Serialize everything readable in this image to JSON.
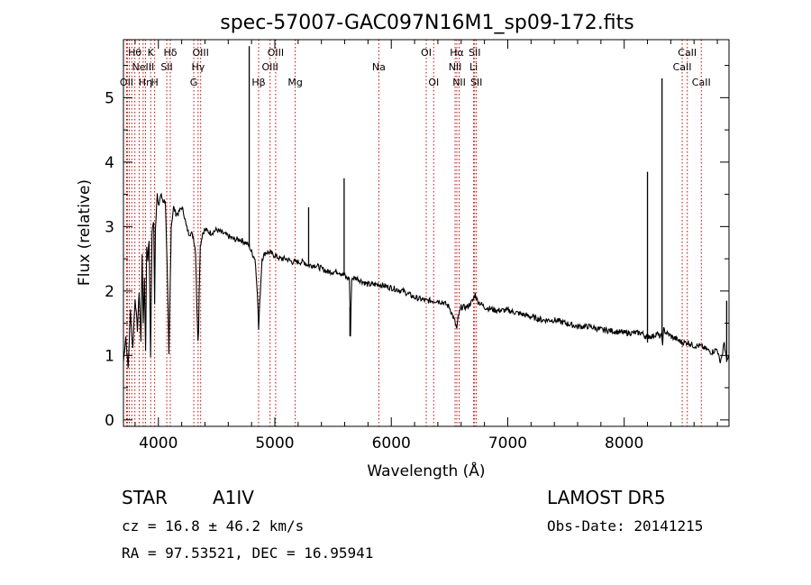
{
  "chart_data": {
    "type": "line",
    "title": "spec-57007-GAC097N16M1_sp09-172.fits",
    "xlabel": "Wavelength (Å)",
    "ylabel": "Flux (relative)",
    "xlim": [
      3700,
      8900
    ],
    "ylim": [
      -0.1,
      5.9
    ],
    "xticks": [
      4000,
      5000,
      6000,
      7000,
      8000
    ],
    "yticks": [
      0,
      1,
      2,
      3,
      4,
      5
    ],
    "grid": false,
    "line_color": "#000000",
    "marker_color": "#cc0000",
    "series": [
      {
        "x": [
          3700,
          3720,
          3740,
          3760,
          3780,
          3800,
          3820,
          3835,
          3850,
          3860,
          3870,
          3880,
          3890,
          3900,
          3910,
          3920,
          3933,
          3945,
          3960,
          3968,
          3975,
          3990,
          4000,
          4020,
          4040,
          4060,
          4080,
          4090,
          4102,
          4110,
          4130,
          4150,
          4170,
          4200,
          4220,
          4240,
          4260,
          4280,
          4300,
          4320,
          4330,
          4340,
          4345,
          4350,
          4360,
          4380,
          4400,
          4450,
          4500,
          4550,
          4600,
          4650,
          4700,
          4750,
          4780,
          4800,
          4830,
          4850,
          4861,
          4870,
          4890,
          4920,
          4950,
          5000,
          5050,
          5100,
          5150,
          5200,
          5250,
          5270,
          5290,
          5300,
          5350,
          5400,
          5450,
          5500,
          5550,
          5590,
          5600,
          5610,
          5620,
          5640,
          5650,
          5660,
          5680,
          5700,
          5800,
          5900,
          6000,
          6100,
          6200,
          6300,
          6400,
          6450,
          6500,
          6530,
          6550,
          6563,
          6575,
          6600,
          6650,
          6700,
          6720,
          6740,
          6800,
          6900,
          7000,
          7100,
          7200,
          7300,
          7400,
          7500,
          7600,
          7700,
          7800,
          7900,
          8000,
          8100,
          8150,
          8180,
          8195,
          8200,
          8205,
          8220,
          8250,
          8280,
          8300,
          8320,
          8330,
          8340,
          8360,
          8400,
          8450,
          8500,
          8550,
          8600,
          8650,
          8700,
          8750,
          8800,
          8820,
          8840,
          8860,
          8880,
          8900
        ],
        "y": [
          0.9,
          1.3,
          0.8,
          1.7,
          1.1,
          1.9,
          1.4,
          2.0,
          1.2,
          2.6,
          1.5,
          2.2,
          1.1,
          2.7,
          2.5,
          2.8,
          1.0,
          2.9,
          3.1,
          1.8,
          3.0,
          3.5,
          3.3,
          3.5,
          3.4,
          3.4,
          2.0,
          1.0,
          2.2,
          3.0,
          3.3,
          3.2,
          3.2,
          3.3,
          3.2,
          3.0,
          2.9,
          2.9,
          2.85,
          2.6,
          1.8,
          1.2,
          1.4,
          2.0,
          2.7,
          2.9,
          2.95,
          2.9,
          2.95,
          2.9,
          2.85,
          2.8,
          2.8,
          2.75,
          2.7,
          2.6,
          2.5,
          2.0,
          1.4,
          1.8,
          2.5,
          2.6,
          2.6,
          2.55,
          2.5,
          2.5,
          2.45,
          2.45,
          2.45,
          2.42,
          2.4,
          2.4,
          2.4,
          2.35,
          2.3,
          2.3,
          2.3,
          2.25,
          2.25,
          2.2,
          2.2,
          2.2,
          1.3,
          2.2,
          2.2,
          2.2,
          2.1,
          2.1,
          2.05,
          2.0,
          1.9,
          1.85,
          1.85,
          1.82,
          1.75,
          1.6,
          1.5,
          1.4,
          1.6,
          1.75,
          1.75,
          1.85,
          1.95,
          1.85,
          1.75,
          1.7,
          1.7,
          1.65,
          1.6,
          1.55,
          1.55,
          1.5,
          1.45,
          1.45,
          1.4,
          1.38,
          1.35,
          1.35,
          1.35,
          1.3,
          1.3,
          1.2,
          1.3,
          1.3,
          1.3,
          1.35,
          1.3,
          1.3,
          1.2,
          1.4,
          1.35,
          1.3,
          1.25,
          1.2,
          1.2,
          1.15,
          1.15,
          1.1,
          1.05,
          1.1,
          0.9,
          1.0,
          1.2,
          0.9,
          1.0
        ],
        "emission_lines": [
          {
            "x": 4780,
            "peak": 5.8
          },
          {
            "x": 5290,
            "peak": 3.3
          },
          {
            "x": 5595,
            "peak": 3.75
          },
          {
            "x": 5645,
            "peak": 1.3
          },
          {
            "x": 8200,
            "peak": 3.85
          },
          {
            "x": 8325,
            "peak": 5.3
          },
          {
            "x": 8880,
            "peak": 1.85
          }
        ]
      }
    ],
    "line_markers": [
      {
        "x": 3727,
        "label": "OII",
        "row": 2
      },
      {
        "x": 3734,
        "label": "",
        "row": -1
      },
      {
        "x": 3750,
        "label": "",
        "row": -1
      },
      {
        "x": 3771,
        "label": "",
        "row": -1
      },
      {
        "x": 3798,
        "label": "Hθ",
        "row": 0
      },
      {
        "x": 3835,
        "label": "",
        "row": -1
      },
      {
        "x": 3869,
        "label": "NeIII",
        "row": 1
      },
      {
        "x": 3889,
        "label": "Hη",
        "row": 2
      },
      {
        "x": 3934,
        "label": "K",
        "row": 0
      },
      {
        "x": 3968,
        "label": "H",
        "row": 2
      },
      {
        "x": 4072,
        "label": "SII",
        "row": 1
      },
      {
        "x": 4102,
        "label": "Hδ",
        "row": 0
      },
      {
        "x": 4304,
        "label": "G",
        "row": 2
      },
      {
        "x": 4341,
        "label": "Hγ",
        "row": 1
      },
      {
        "x": 4363,
        "label": "OIII",
        "row": 0
      },
      {
        "x": 4861,
        "label": "Hβ",
        "row": 2
      },
      {
        "x": 4959,
        "label": "OIII",
        "row": 1
      },
      {
        "x": 5007,
        "label": "OIII",
        "row": 0
      },
      {
        "x": 5175,
        "label": "Mg",
        "row": 2
      },
      {
        "x": 5893,
        "label": "Na",
        "row": 1
      },
      {
        "x": 6300,
        "label": "OI",
        "row": 0
      },
      {
        "x": 6364,
        "label": "OI",
        "row": 2
      },
      {
        "x": 6548,
        "label": "NII",
        "row": 1
      },
      {
        "x": 6563,
        "label": "Hα",
        "row": 0
      },
      {
        "x": 6583,
        "label": "NII",
        "row": 2
      },
      {
        "x": 6707,
        "label": "Li",
        "row": 1
      },
      {
        "x": 6716,
        "label": "SII",
        "row": 0
      },
      {
        "x": 6731,
        "label": "SII",
        "row": 2
      },
      {
        "x": 8498,
        "label": "CaII",
        "row": 1
      },
      {
        "x": 8542,
        "label": "CaII",
        "row": 0
      },
      {
        "x": 8662,
        "label": "CaII",
        "row": 2
      }
    ]
  },
  "info": {
    "class": "STAR",
    "subclass": "A1IV",
    "survey": "LAMOST DR5",
    "cz": "cz = 16.8 ± 46.2 km/s",
    "obs_date": "Obs-Date: 20141215",
    "coords": "RA =  97.53521, DEC =  16.95941"
  }
}
